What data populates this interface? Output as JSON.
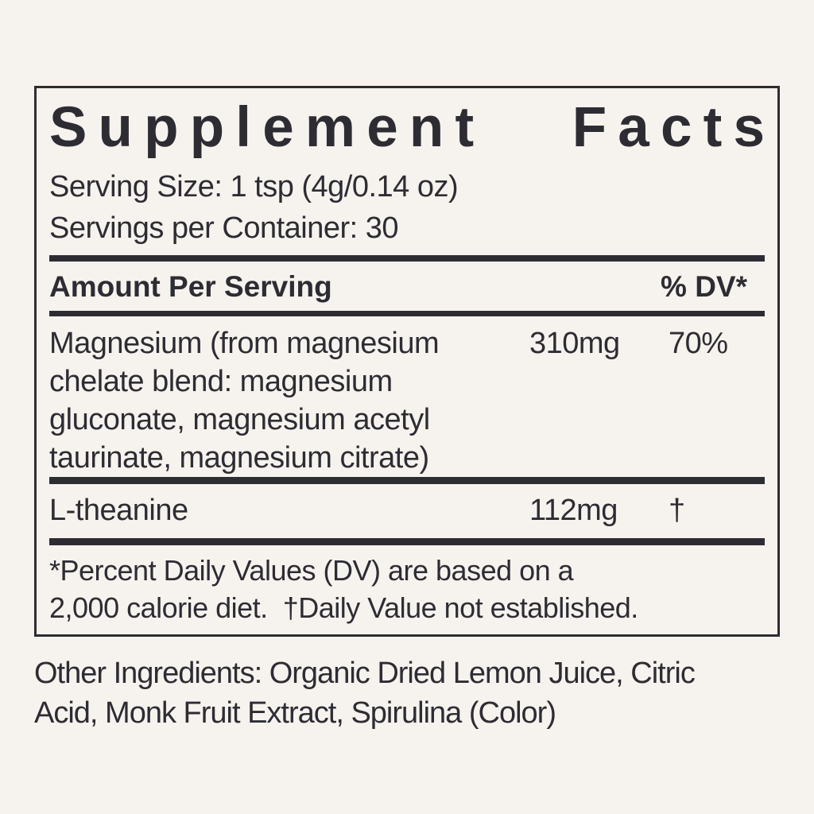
{
  "label": {
    "title_words": [
      "Supplement",
      "Facts"
    ],
    "serving_size": "Serving Size: 1 tsp (4g/0.14 oz)",
    "servings_per_container": "Servings per Container: 30",
    "header": {
      "amount_label": "Amount Per Serving",
      "dv_label": "% DV*"
    },
    "rows": [
      {
        "name_lines": [
          "Magnesium (from magnesium",
          "chelate blend: magnesium",
          "gluconate, magnesium acetyl",
          "taurinate, magnesium citrate)"
        ],
        "amount": "310mg",
        "dv": "70%"
      },
      {
        "name_lines": [
          "L-theanine"
        ],
        "amount": "112mg",
        "dv": "†"
      }
    ],
    "footnote_lines": [
      "*Percent Daily Values (DV) are based on a",
      "2,000 calorie diet.  †Daily Value not established."
    ],
    "other_ingredients_lines": [
      "Other Ingredients: Organic Dried Lemon Juice, Citric",
      "Acid, Monk Fruit Extract, Spirulina (Color)"
    ]
  },
  "colors": {
    "background": "#f6f3ee",
    "ink": "#2e2c33"
  }
}
